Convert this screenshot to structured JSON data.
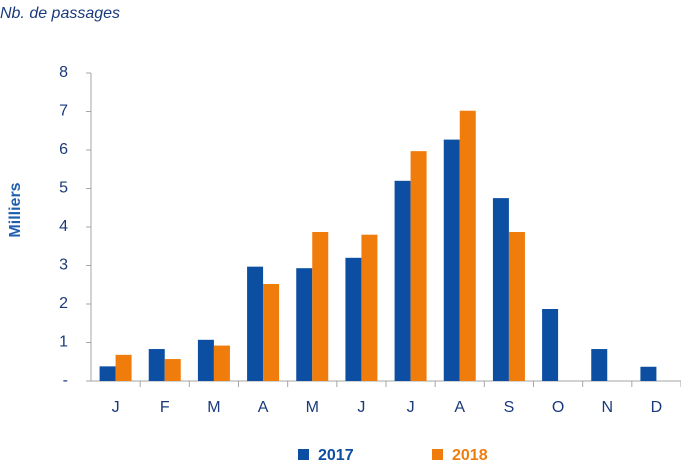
{
  "chart_data": {
    "type": "bar",
    "annotation": "Nb. de passages",
    "y_label": "Milliers",
    "categories": [
      "J",
      "F",
      "M",
      "A",
      "M",
      "J",
      "J",
      "A",
      "S",
      "O",
      "N",
      "D"
    ],
    "series": [
      {
        "name": "2017",
        "color": "#0b4ea2",
        "values": [
          0.38,
          0.83,
          1.07,
          2.97,
          2.93,
          3.2,
          5.2,
          6.27,
          4.75,
          1.87,
          0.83,
          0.37
        ]
      },
      {
        "name": "2018",
        "color": "#f07c0c",
        "values": [
          0.68,
          0.57,
          0.92,
          2.52,
          3.87,
          3.8,
          5.97,
          7.02,
          3.87,
          null,
          null,
          null
        ]
      }
    ],
    "ylim": [
      0,
      8
    ],
    "yticks": [
      {
        "value": 0,
        "label": "-"
      },
      1,
      2,
      3,
      4,
      5,
      6,
      7,
      8
    ],
    "grid": false,
    "legend": "bottom"
  }
}
